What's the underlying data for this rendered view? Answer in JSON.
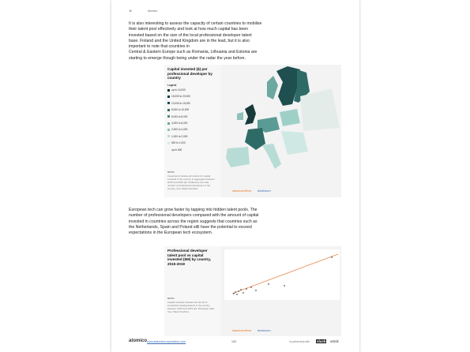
{
  "header": {
    "page_number": "36",
    "brand": "Atomico"
  },
  "paragraph_1": [
    "It is also interesting to assess the capacity of certain countries to mobilise",
    "their talent pool effectively and look at how much capital has been",
    "invested based on the size of the local professional developer talent",
    "base. Finland and the United Kingdom are in the lead, but it is also",
    "important to note that countries in",
    "Central & Eastern Europe such as Romania, Lithuania and Estonia are",
    "starting to emerge though being under the radar the year before."
  ],
  "map_figure": {
    "title": "Capital invested ($) per professional developer by country",
    "legend_title": "Legend",
    "legend": [
      "up to 10,000",
      "15,000 to 20,000",
      "10,000 to 15,000",
      "8,000 to 10,000",
      "6,000 to 8,000",
      "4,000 to 6,000",
      "2,000 to 4,000",
      "1,000 to 2,000",
      "500 to 1,000",
      "up to 500"
    ],
    "note_title": "NOTE:",
    "note": "Investment includes all rounds for capital invested in the country in aggregate between 2015 and 2019 Q3. Divided by the total number of professional developers in the country, from Stack Overflow.",
    "logos": [
      "stackoverflow",
      "dealroom"
    ]
  },
  "paragraph_2": [
    "European tech can grow faster by tapping into hidden talent pools. The",
    "number of professional developers compared with the amount of capital",
    "invested in countries across the region suggests that countries such as",
    "the Netherlands, Spain and Poland still have the potential to exceed",
    "expectations in the European tech ecosystem."
  ],
  "scatter_figure": {
    "title": "Professional developer talent pool vs capital invested ($M) by country, 2015-2019",
    "note_title": "NOTE:",
    "note": "Capital invested includes all rounds of companies headquartered in the country between 2015 and 2019 Q3. Developer data from Stack Overflow.",
    "logos": [
      "stackoverflow",
      "dealroom"
    ]
  },
  "footer": {
    "brand": "atomico",
    "url": "www.stateofeuropeantech.com",
    "page": "100",
    "partners_label": "In partnership with",
    "partners": [
      "slush",
      "orrick"
    ]
  }
}
